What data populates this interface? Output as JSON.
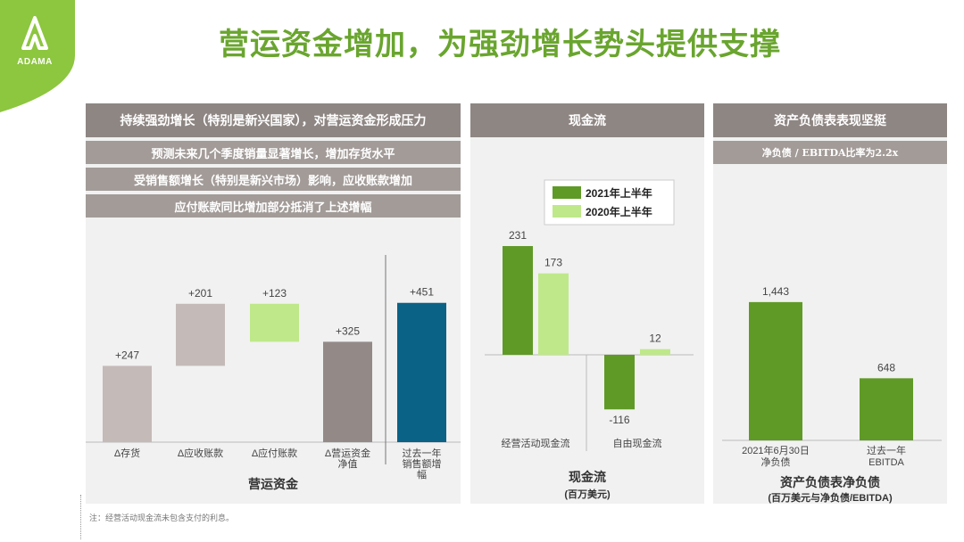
{
  "brand": {
    "name": "ADAMA",
    "color": "#8dc63f"
  },
  "title": "营运资金增加，为强劲增长势头提供支撑",
  "panel1": {
    "header": "持续强劲增长（特别是新兴国家），对营运资金形成压力",
    "bullets": [
      "预测未来几个季度销量显著增长，增加存货水平",
      "受销售额增长（特别是新兴市场）影响，应收账款增加",
      "应付账款同比增加部分抵消了上述增幅"
    ],
    "caption": "营运资金"
  },
  "panel2": {
    "header": "现金流",
    "caption": "现金流",
    "subcaption": "(百万美元)"
  },
  "panel3": {
    "header": "资产负债表表现坚挺",
    "subheader": "净负债 / EBITDA比率为2.2x",
    "caption": "资产负债表净负债",
    "subcaption": "(百万美元与净负债/EBITDA)"
  },
  "chart_data": [
    {
      "type": "bar",
      "subtype": "waterfall",
      "categories": [
        "Δ存货",
        "Δ应收账款",
        "Δ应付账款",
        "Δ营运资金净值",
        "过去一年销售额增幅"
      ],
      "values": [
        247,
        201,
        123,
        325,
        451
      ],
      "labels": [
        "+247",
        "+201",
        "+123",
        "+325",
        "+451"
      ],
      "colors": [
        "#c4bab8",
        "#c4bab8",
        "#bfe88a",
        "#938a88",
        "#0b6287"
      ]
    },
    {
      "type": "bar",
      "categories": [
        "经营活动现金流",
        "自由现金流"
      ],
      "series": [
        {
          "name": "2021年上半年",
          "values": [
            231,
            -116
          ],
          "color": "#5f9a27"
        },
        {
          "name": "2020年上半年",
          "values": [
            173,
            12
          ],
          "color": "#bfe88a"
        }
      ],
      "legend": "top-right"
    },
    {
      "type": "bar",
      "categories": [
        "2021年6月30日净负债",
        "过去一年EBITDA"
      ],
      "values": [
        1443,
        648
      ],
      "labels": [
        "1,443",
        "648"
      ],
      "color": "#5f9a27"
    }
  ],
  "footnote": "注：经营活动现金流未包含支付的利息。"
}
